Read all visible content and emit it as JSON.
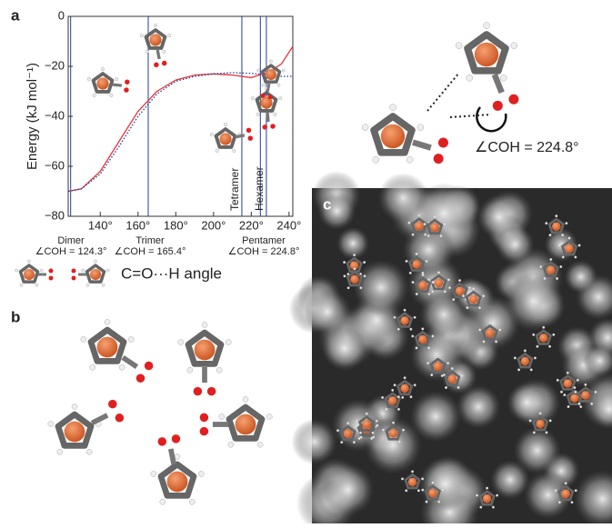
{
  "panel_labels": [
    "a",
    "b",
    "c"
  ],
  "chart_data": {
    "type": "line",
    "ylabel": "Energy (kJ mol⁻¹)",
    "xlim": [
      123,
      242
    ],
    "ylim": [
      -80,
      0
    ],
    "xticks": [
      {
        "value": 140,
        "label": "140°"
      },
      {
        "value": 160,
        "label": "160°"
      },
      {
        "value": 180,
        "label": "180°"
      },
      {
        "value": 200,
        "label": "200°"
      },
      {
        "value": 220,
        "label": "220°"
      },
      {
        "value": 240,
        "label": "240°"
      }
    ],
    "yticks": [
      0,
      {
        "value": -20,
        "label": "−20"
      },
      {
        "value": -40,
        "label": "−40"
      },
      {
        "value": -60,
        "label": "−60"
      },
      {
        "value": -80,
        "label": "−80"
      }
    ],
    "x": [
      123,
      130,
      140,
      150,
      160,
      170,
      180,
      190,
      200,
      210,
      220,
      230,
      236,
      242
    ],
    "series": [
      {
        "color": "#e8333a",
        "style": "solid",
        "values": [
          -70,
          -69,
          -62,
          -50,
          -38,
          -30,
          -25.5,
          -23.5,
          -23,
          -23.5,
          -24.5,
          -22,
          -19,
          -12
        ]
      },
      {
        "color": "#1f3f9a",
        "style": "dotted",
        "values": [
          -70,
          -69,
          -63,
          -52,
          -40,
          -31,
          -26,
          -24,
          -23,
          -22.5,
          -22.8,
          -23.5,
          -24,
          -24
        ]
      }
    ],
    "vlines": [
      124.3,
      165.4,
      215,
      224.8,
      228
    ],
    "vline_color": "#1f3f9a",
    "rotated_labels": [
      {
        "label": "Tetramer",
        "at": 215
      },
      {
        "label": "Hexamer",
        "at": 228
      }
    ],
    "conformers": [
      {
        "name": "Dimer",
        "angle": "∠COH = 124.3°"
      },
      {
        "name": "Trimer",
        "angle": "∠COH = 165.4°"
      },
      {
        "name": "Pentamer",
        "angle": "∠COH = 224.8°"
      }
    ]
  },
  "angle_label": "C=O···H angle",
  "inset_angle": "∠COH = 224.8°"
}
